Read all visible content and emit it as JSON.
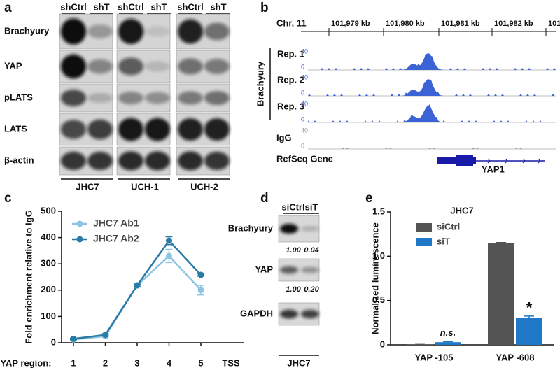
{
  "panel_a": {
    "label": "a",
    "groups": [
      {
        "name": "JHC7",
        "lanes": [
          "shCtrl",
          "shT"
        ]
      },
      {
        "name": "UCH-1",
        "lanes": [
          "shCtrl",
          "shT"
        ]
      },
      {
        "name": "UCH-2",
        "lanes": [
          "shCtrl",
          "shT"
        ]
      }
    ],
    "rows": [
      "Brachyury",
      "YAP",
      "pLATS",
      "LATS",
      "β-actin"
    ]
  },
  "panel_b": {
    "label": "b",
    "chromosome": "Chr. 11",
    "coordinates": [
      "101,979 kb",
      "101,980 kb",
      "101,981 kb",
      "101,982 kb",
      "101,983 kb"
    ],
    "group_label": "Brachyury",
    "tracks": [
      {
        "name": "Rep. 1",
        "scale": [
          "40",
          "0"
        ]
      },
      {
        "name": "Rep. 2",
        "scale": [
          "40",
          "0"
        ]
      },
      {
        "name": "Rep. 3",
        "scale": [
          "40",
          "0"
        ]
      },
      {
        "name": "IgG",
        "scale": [
          "40",
          "0"
        ]
      }
    ],
    "gene_track": "RefSeq Gene",
    "gene": "YAP1"
  },
  "panel_d": {
    "label": "d",
    "lanes": [
      "siCtrl",
      "siT"
    ],
    "rows": [
      {
        "name": "Brachyury",
        "quant": [
          "1.00",
          "0.04"
        ]
      },
      {
        "name": "YAP",
        "quant": [
          "1.00",
          "0.20"
        ]
      },
      {
        "name": "GAPDH"
      }
    ],
    "cell_line": "JHC7"
  },
  "chart_data": [
    {
      "type": "line",
      "label": "c",
      "x_label": "YAP region:",
      "y_label": "Fold enrichment relative to IgG",
      "categories": [
        "1",
        "2",
        "3",
        "4",
        "5"
      ],
      "x_end_label": "TSS",
      "series": [
        {
          "name": "JHC7 Ab1",
          "color": "#8cc4e2",
          "values": [
            12,
            25,
            218,
            330,
            200
          ],
          "errors": [
            3,
            4,
            5,
            25,
            18
          ]
        },
        {
          "name": "JHC7 Ab2",
          "color": "#2a7ca6",
          "values": [
            15,
            30,
            218,
            388,
            258
          ],
          "errors": [
            3,
            4,
            5,
            15,
            5
          ]
        }
      ],
      "ylim": [
        0,
        500
      ],
      "yticks": [
        0,
        100,
        200,
        300,
        400,
        500
      ],
      "legend": "upper left"
    },
    {
      "type": "bar",
      "label": "e",
      "title": "JHC7",
      "y_label": "Normalized luminescence",
      "categories": [
        "YAP -105",
        "YAP -608"
      ],
      "series": [
        {
          "name": "siCtrl",
          "color": "#545454",
          "values": [
            0.005,
            1.15
          ],
          "errors": [
            0,
            0.005
          ]
        },
        {
          "name": "siT",
          "color": "#1f78c8",
          "values": [
            0.03,
            0.3
          ],
          "errors": [
            0.006,
            0.025
          ]
        }
      ],
      "annotations": [
        {
          "text": "n.s.",
          "series": 1,
          "index": 0
        },
        {
          "text": "*",
          "series": 1,
          "index": 1
        }
      ],
      "ylim": [
        0,
        1.5
      ],
      "yticks": [
        0,
        0.5,
        {
          "value": 1,
          "label": "1.0"
        },
        1.5
      ],
      "legend": "upper left"
    }
  ]
}
